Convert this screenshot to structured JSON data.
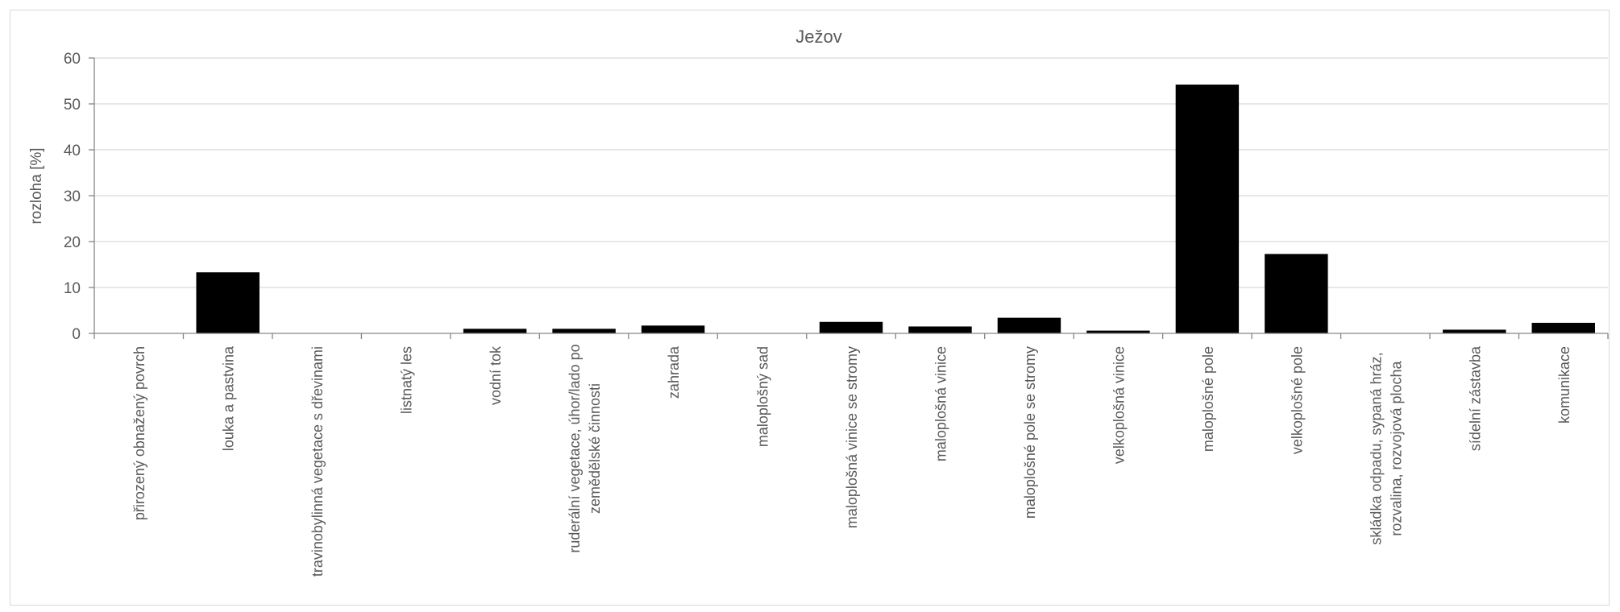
{
  "chart_data": {
    "type": "bar",
    "title": "Ježov",
    "xlabel": "",
    "ylabel": "rozloha [%]",
    "ylim": [
      0,
      60
    ],
    "yticks": [
      0,
      10,
      20,
      30,
      40,
      50,
      60
    ],
    "grid": true,
    "legend": "none",
    "bar_color": "#000000",
    "categories": [
      [
        "přirozený obnažený povrch"
      ],
      [
        "louka a pastvina"
      ],
      [
        "travinobylinná vegetace s dřevinami"
      ],
      [
        "listnatý les"
      ],
      [
        "vodní tok"
      ],
      [
        "ruderální vegetace, úhor/lado po",
        "zemědělské činnosti"
      ],
      [
        "zahrada"
      ],
      [
        "maloplošný sad"
      ],
      [
        "maloplošná vinice se stromy"
      ],
      [
        "maloplošná vinice"
      ],
      [
        "maloplošné pole se stromy"
      ],
      [
        "velkoplošná vinice"
      ],
      [
        "maloplošné pole"
      ],
      [
        "velkoplošné pole"
      ],
      [
        "skládka odpadu, sypaná hráz,",
        "rozvalina, rozvojová plocha"
      ],
      [
        "sídelní zástavba"
      ],
      [
        "komunikace"
      ]
    ],
    "values": [
      0,
      13.3,
      0,
      0,
      1.0,
      1.0,
      1.7,
      0,
      2.5,
      1.5,
      3.4,
      0.6,
      54.2,
      17.3,
      0,
      0.8,
      2.3
    ]
  }
}
